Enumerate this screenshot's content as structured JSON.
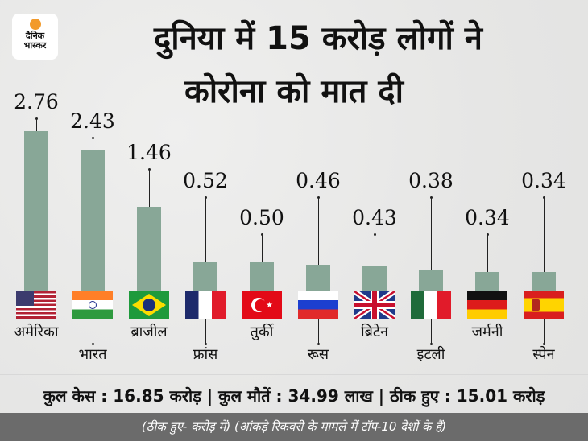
{
  "logo": {
    "line1": "दैनिक",
    "line2": "भास्कर"
  },
  "title": {
    "line1": "दुनिया में 15 करोड़ लोगों ने",
    "line2": "कोरोना को मात दी"
  },
  "stats": "कुल केस : 16.85 करोड़  |  कुल मौतें : 34.99 लाख  |  ठीक हुए : 15.01 करोड़",
  "footer": "(ठीक हुए- करोड़ में) (आंकड़े रिकवरी के मामले में टॉप-10 देशों के हैं)",
  "colors": {
    "bar": "#88a797",
    "footer_bg": "#6b6b6b",
    "logo_dot": "#f29a2b"
  },
  "chart_data": {
    "type": "bar",
    "title": "दुनिया में 15 करोड़ लोगों ने कोरोना को मात दी",
    "xlabel": "",
    "ylabel": "ठीक हुए (करोड़ में)",
    "categories": [
      "अमेरिका",
      "भारत",
      "ब्राजील",
      "फ्रांस",
      "तुर्की",
      "रूस",
      "ब्रिटेन",
      "इटली",
      "जर्मनी",
      "स्पेन"
    ],
    "values": [
      2.76,
      2.43,
      1.46,
      0.52,
      0.5,
      0.46,
      0.43,
      0.38,
      0.34,
      0.34
    ],
    "labels": [
      "2.76",
      "2.43",
      "1.46",
      "0.52",
      "0.50",
      "0.46",
      "0.43",
      "0.38",
      "0.34",
      "0.34"
    ],
    "grid": false,
    "legend": null
  }
}
